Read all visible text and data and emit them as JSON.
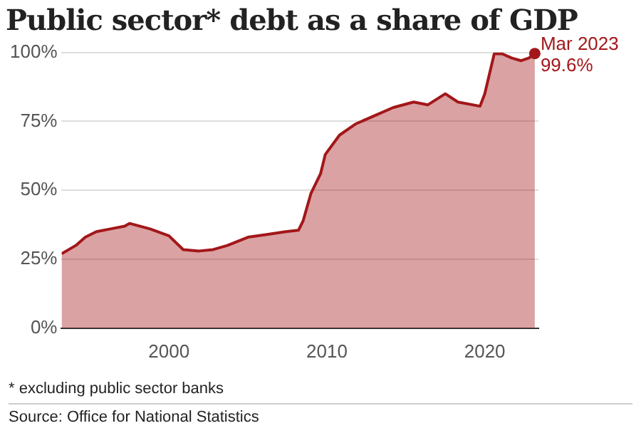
{
  "chart_data": {
    "type": "area",
    "title": "Public sector* debt as a share of GDP",
    "x": [
      1993.2,
      1994.1,
      1994.7,
      1995.4,
      1996.3,
      1997.2,
      1997.5,
      1998.8,
      2000.0,
      2000.9,
      2001.9,
      2002.8,
      2003.7,
      2005.0,
      2006.2,
      2007.4,
      2008.2,
      2008.5,
      2009.0,
      2009.6,
      2009.9,
      2010.8,
      2011.8,
      2013.0,
      2014.2,
      2015.5,
      2016.4,
      2017.5,
      2018.3,
      2019.7,
      2020.0,
      2020.6,
      2021.1,
      2021.7,
      2022.3,
      2022.8,
      2023.17
    ],
    "series": [
      {
        "color": "#a3171a",
        "values": [
          27,
          30,
          33,
          35,
          36,
          37,
          38,
          36,
          33.5,
          28.5,
          28,
          28.5,
          30,
          33,
          34,
          35,
          35.5,
          39,
          49,
          56,
          63,
          70,
          74,
          77,
          80,
          82,
          81,
          85,
          82,
          80.5,
          85,
          99.5,
          99.5,
          98,
          97,
          98,
          99.6
        ]
      }
    ],
    "xlim": [
      1993.2,
      2023.4
    ],
    "xticks": [
      2000,
      2010,
      2020
    ],
    "ylim": [
      0,
      100
    ],
    "yticks": [
      {
        "value": 0,
        "label": "0%"
      },
      {
        "value": 25,
        "label": "25%"
      },
      {
        "value": 50,
        "label": "50%"
      },
      {
        "value": 75,
        "label": "75%"
      },
      {
        "value": 100,
        "label": "100%"
      }
    ],
    "grid": "y",
    "marker": "none",
    "annotations": [
      {
        "text": "Mar 2023",
        "x": 2023.17,
        "y": 99.6
      },
      {
        "text": "99.6%",
        "x": 2023.17,
        "y": 99.6
      },
      "* excluding public sector banks",
      "Source: Office for National Statistics"
    ]
  }
}
